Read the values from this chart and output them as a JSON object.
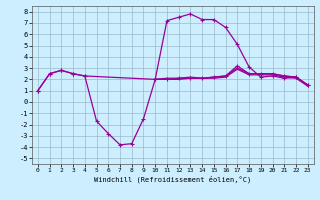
{
  "title": "",
  "xlabel": "Windchill (Refroidissement éolien,°C)",
  "ylabel": "",
  "bg_color": "#cceeff",
  "line_color": "#990099",
  "grid_color": "#99bbcc",
  "xlim": [
    -0.5,
    23.5
  ],
  "ylim": [
    -5.5,
    8.5
  ],
  "xticks": [
    0,
    1,
    2,
    3,
    4,
    5,
    6,
    7,
    8,
    9,
    10,
    11,
    12,
    13,
    14,
    15,
    16,
    17,
    18,
    19,
    20,
    21,
    22,
    23
  ],
  "yticks": [
    -5,
    -4,
    -3,
    -2,
    -1,
    0,
    1,
    2,
    3,
    4,
    5,
    6,
    7,
    8
  ],
  "series": [
    {
      "x": [
        0,
        1,
        2,
        3,
        4,
        10,
        11,
        12,
        13,
        14,
        15,
        16,
        17,
        18,
        19,
        20,
        21,
        22,
        23
      ],
      "y": [
        1.0,
        2.5,
        2.8,
        2.5,
        2.3,
        2.0,
        2.0,
        2.1,
        2.1,
        2.1,
        2.2,
        2.3,
        3.2,
        2.5,
        2.5,
        2.5,
        2.3,
        2.2,
        1.5
      ],
      "marker": true,
      "lw": 0.9
    },
    {
      "x": [
        0,
        1,
        2,
        3,
        4,
        5,
        6,
        7,
        8,
        9,
        10,
        11,
        12,
        13,
        14,
        15,
        16,
        17,
        18,
        19,
        20,
        21,
        22,
        23
      ],
      "y": [
        1.0,
        2.5,
        2.8,
        2.5,
        2.3,
        -1.7,
        -2.8,
        -3.8,
        -3.7,
        -1.5,
        2.0,
        7.2,
        7.5,
        7.8,
        7.3,
        7.3,
        6.6,
        5.1,
        3.1,
        2.2,
        2.3,
        2.1,
        2.2,
        1.5
      ],
      "marker": true,
      "lw": 0.9
    },
    {
      "x": [
        10,
        11,
        12,
        13,
        14,
        15,
        16,
        17,
        18,
        19,
        20,
        21,
        22,
        23
      ],
      "y": [
        2.0,
        2.1,
        2.1,
        2.2,
        2.1,
        2.2,
        2.3,
        3.0,
        2.5,
        2.5,
        2.5,
        2.3,
        2.2,
        1.5
      ],
      "marker": false,
      "lw": 0.9
    },
    {
      "x": [
        10,
        11,
        12,
        13,
        14,
        15,
        16,
        17,
        18,
        19,
        20,
        21,
        22,
        23
      ],
      "y": [
        2.0,
        2.0,
        2.0,
        2.1,
        2.1,
        2.1,
        2.2,
        2.9,
        2.4,
        2.4,
        2.4,
        2.2,
        2.1,
        1.4
      ],
      "marker": false,
      "lw": 0.9
    }
  ]
}
